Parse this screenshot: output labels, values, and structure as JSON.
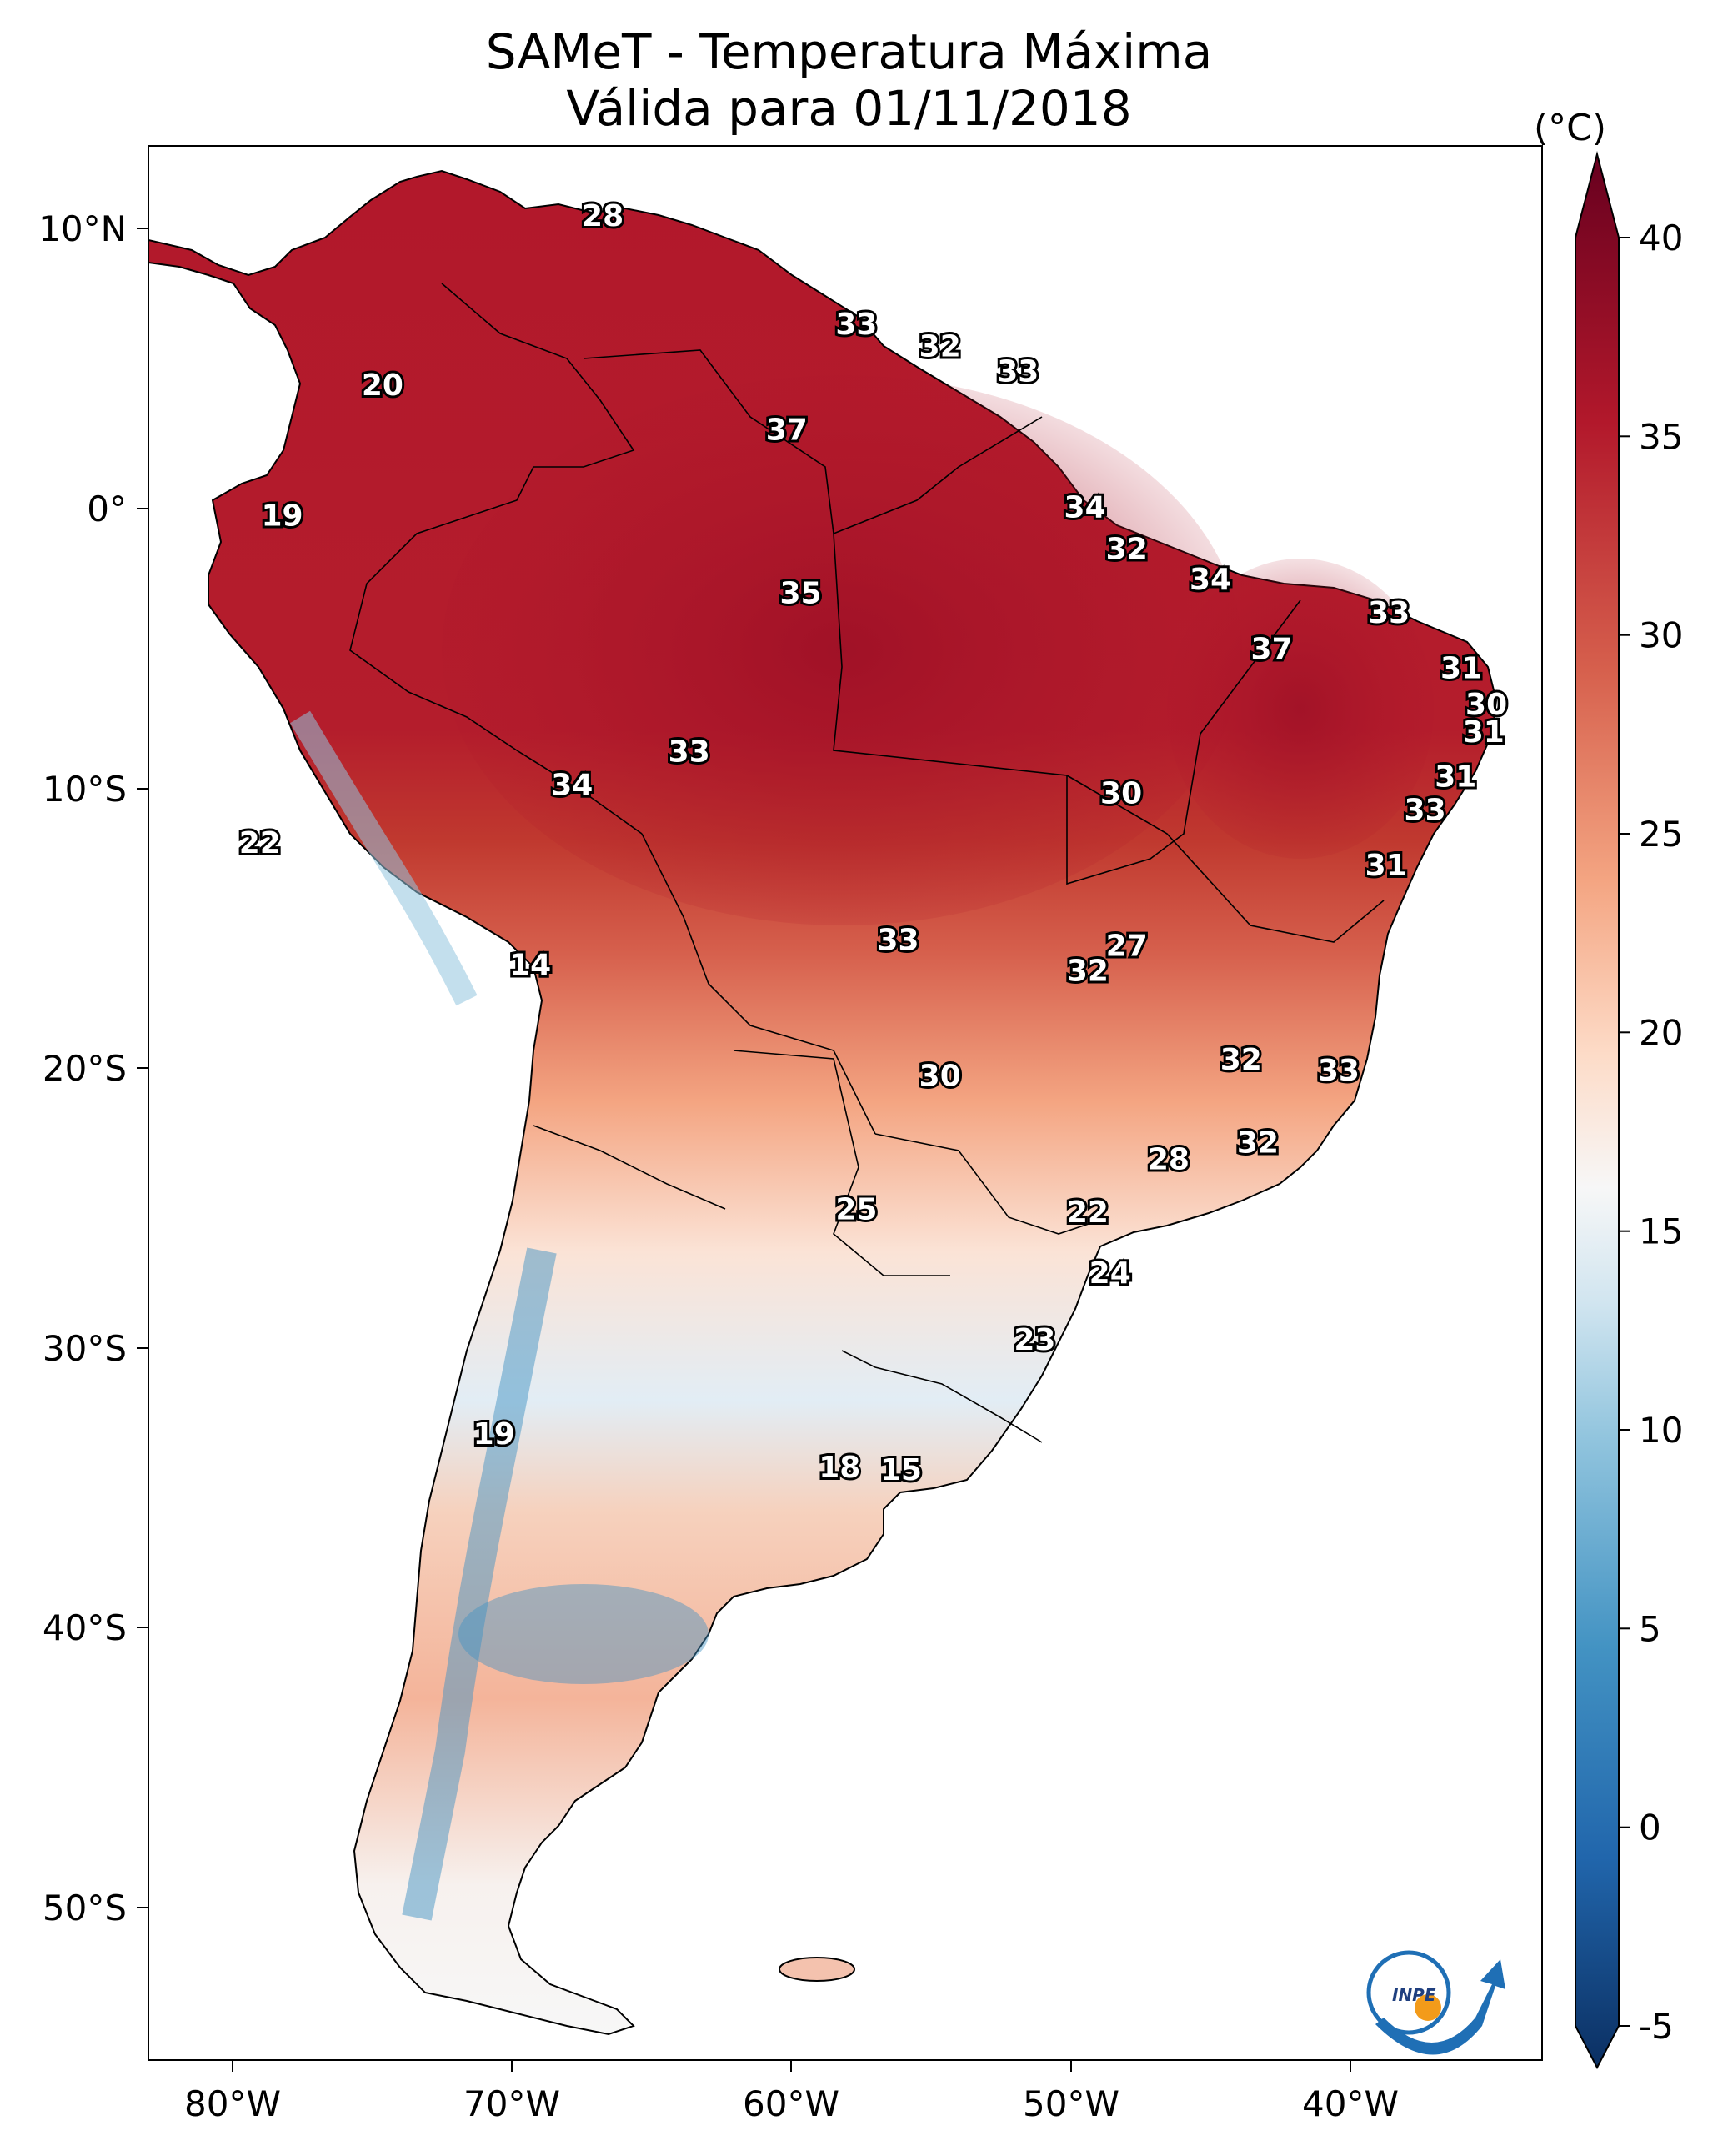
{
  "title": "SAMeT - Temperatura Máxima",
  "subtitle": "Válida para 01/11/2018",
  "colorbar": {
    "unit": "(°C)",
    "ticks": [
      "40",
      "35",
      "30",
      "25",
      "20",
      "15",
      "10",
      "5",
      "0",
      "-5"
    ],
    "range": [
      -5,
      40
    ],
    "colors": [
      "#0b2f62",
      "#2166ac",
      "#4393c3",
      "#92c5de",
      "#d1e5f0",
      "#f7f7f7",
      "#fddbc7",
      "#f4a582",
      "#d6604d",
      "#b2182b",
      "#67001f"
    ]
  },
  "axes": {
    "lon_labels": [
      "80°W",
      "70°W",
      "60°W",
      "50°W",
      "40°W"
    ],
    "lat_labels": [
      "10°N",
      "0°",
      "10°S",
      "20°S",
      "30°S",
      "40°S",
      "50°S"
    ]
  },
  "extent": {
    "lon": [
      -83,
      -33
    ],
    "lat": [
      -56,
      13
    ]
  },
  "logo_text": "INPE",
  "point_values": [
    {
      "lon": -66.7,
      "lat": 10.5,
      "value": "28"
    },
    {
      "lon": -74.6,
      "lat": 4.4,
      "value": "20"
    },
    {
      "lon": -78.2,
      "lat": -0.3,
      "value": "19"
    },
    {
      "lon": -57.6,
      "lat": 6.6,
      "value": "33"
    },
    {
      "lon": -54.6,
      "lat": 5.8,
      "value": "32"
    },
    {
      "lon": -51.8,
      "lat": 4.9,
      "value": "33"
    },
    {
      "lon": -60.1,
      "lat": 2.8,
      "value": "37"
    },
    {
      "lon": -49.4,
      "lat": 0.0,
      "value": "34"
    },
    {
      "lon": -47.9,
      "lat": -1.5,
      "value": "32"
    },
    {
      "lon": -44.9,
      "lat": -2.6,
      "value": "34"
    },
    {
      "lon": -38.5,
      "lat": -3.8,
      "value": "33"
    },
    {
      "lon": -42.7,
      "lat": -5.1,
      "value": "37"
    },
    {
      "lon": -59.6,
      "lat": -3.1,
      "value": "35"
    },
    {
      "lon": -35.9,
      "lat": -5.8,
      "value": "31"
    },
    {
      "lon": -35.0,
      "lat": -7.1,
      "value": "30"
    },
    {
      "lon": -35.1,
      "lat": -8.1,
      "value": "31"
    },
    {
      "lon": -36.1,
      "lat": -9.7,
      "value": "31"
    },
    {
      "lon": -37.2,
      "lat": -10.9,
      "value": "33"
    },
    {
      "lon": -38.6,
      "lat": -12.9,
      "value": "31"
    },
    {
      "lon": -48.1,
      "lat": -10.3,
      "value": "30"
    },
    {
      "lon": -63.6,
      "lat": -8.8,
      "value": "33"
    },
    {
      "lon": -67.8,
      "lat": -10.0,
      "value": "34"
    },
    {
      "lon": -79.0,
      "lat": -12.1,
      "value": "22"
    },
    {
      "lon": -69.3,
      "lat": -16.5,
      "value": "14"
    },
    {
      "lon": -56.1,
      "lat": -15.6,
      "value": "33"
    },
    {
      "lon": -47.9,
      "lat": -15.8,
      "value": "27"
    },
    {
      "lon": -49.3,
      "lat": -16.7,
      "value": "32"
    },
    {
      "lon": -43.8,
      "lat": -19.9,
      "value": "32"
    },
    {
      "lon": -40.3,
      "lat": -20.3,
      "value": "33"
    },
    {
      "lon": -54.6,
      "lat": -20.5,
      "value": "30"
    },
    {
      "lon": -43.2,
      "lat": -22.9,
      "value": "32"
    },
    {
      "lon": -46.4,
      "lat": -23.5,
      "value": "28"
    },
    {
      "lon": -57.6,
      "lat": -25.3,
      "value": "25"
    },
    {
      "lon": -49.3,
      "lat": -25.4,
      "value": "22"
    },
    {
      "lon": -48.5,
      "lat": -27.6,
      "value": "24"
    },
    {
      "lon": -51.2,
      "lat": -30.0,
      "value": "23"
    },
    {
      "lon": -70.6,
      "lat": -33.4,
      "value": "19"
    },
    {
      "lon": -58.2,
      "lat": -34.6,
      "value": "18"
    },
    {
      "lon": -56.0,
      "lat": -34.7,
      "value": "15"
    }
  ]
}
